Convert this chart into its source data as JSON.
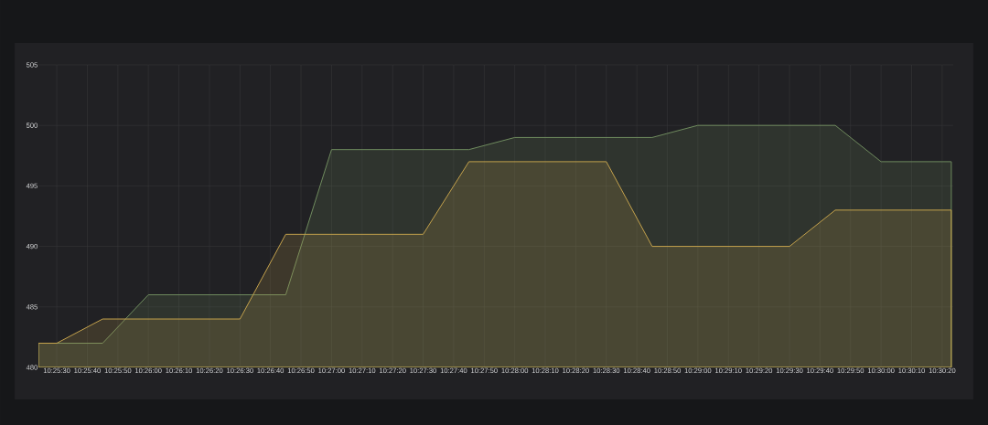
{
  "chart_data": {
    "type": "area",
    "x": [
      10.42333,
      10.425,
      10.42917,
      10.43333,
      10.4375,
      10.44167,
      10.44583,
      10.45,
      10.45417,
      10.45833,
      10.4625,
      10.46667,
      10.47083,
      10.475,
      10.47917,
      10.48333,
      10.4875,
      10.49167,
      10.49583,
      10.5,
      10.50417,
      10.50639
    ],
    "series": [
      {
        "color": "#6f8c5e",
        "values": [
          482,
          482,
          482,
          486,
          486,
          486,
          486,
          498,
          498,
          498,
          498,
          499,
          499,
          499,
          499,
          500,
          500,
          500,
          500,
          497,
          497,
          497
        ]
      },
      {
        "color": "#c4a24c",
        "values": [
          482,
          482,
          484,
          484,
          484,
          484,
          491,
          491,
          491,
          491,
          497,
          497,
          497,
          497,
          490,
          490,
          490,
          490,
          493,
          493,
          493,
          493
        ]
      }
    ],
    "xlim": [
      10.42333,
      10.50656
    ],
    "xticks": [
      {
        "value": 10.425,
        "label": "10:25:30"
      },
      {
        "value": 10.42778,
        "label": "10:25:40"
      },
      {
        "value": 10.43056,
        "label": "10:25:50"
      },
      {
        "value": 10.43333,
        "label": "10:26:00"
      },
      {
        "value": 10.43611,
        "label": "10:26:10"
      },
      {
        "value": 10.43889,
        "label": "10:26:20"
      },
      {
        "value": 10.44167,
        "label": "10:26:30"
      },
      {
        "value": 10.44444,
        "label": "10:26:40"
      },
      {
        "value": 10.44722,
        "label": "10:26:50"
      },
      {
        "value": 10.45,
        "label": "10:27:00"
      },
      {
        "value": 10.45278,
        "label": "10:27:10"
      },
      {
        "value": 10.45556,
        "label": "10:27:20"
      },
      {
        "value": 10.45833,
        "label": "10:27:30"
      },
      {
        "value": 10.46111,
        "label": "10:27:40"
      },
      {
        "value": 10.46389,
        "label": "10:27:50"
      },
      {
        "value": 10.46667,
        "label": "10:28:00"
      },
      {
        "value": 10.46944,
        "label": "10:28:10"
      },
      {
        "value": 10.47222,
        "label": "10:28:20"
      },
      {
        "value": 10.475,
        "label": "10:28:30"
      },
      {
        "value": 10.47778,
        "label": "10:28:40"
      },
      {
        "value": 10.48056,
        "label": "10:28:50"
      },
      {
        "value": 10.48333,
        "label": "10:29:00"
      },
      {
        "value": 10.48611,
        "label": "10:29:10"
      },
      {
        "value": 10.48889,
        "label": "10:29:20"
      },
      {
        "value": 10.49167,
        "label": "10:29:30"
      },
      {
        "value": 10.49444,
        "label": "10:29:40"
      },
      {
        "value": 10.49722,
        "label": "10:29:50"
      },
      {
        "value": 10.5,
        "label": "10:30:00"
      },
      {
        "value": 10.50278,
        "label": "10:30:10"
      },
      {
        "value": 10.50556,
        "label": "10:30:20"
      }
    ],
    "ylim": [
      480,
      505
    ],
    "yticks": [
      480,
      485,
      490,
      495,
      500,
      505
    ],
    "grid": true,
    "marker": "none",
    "line_style": "solid"
  }
}
